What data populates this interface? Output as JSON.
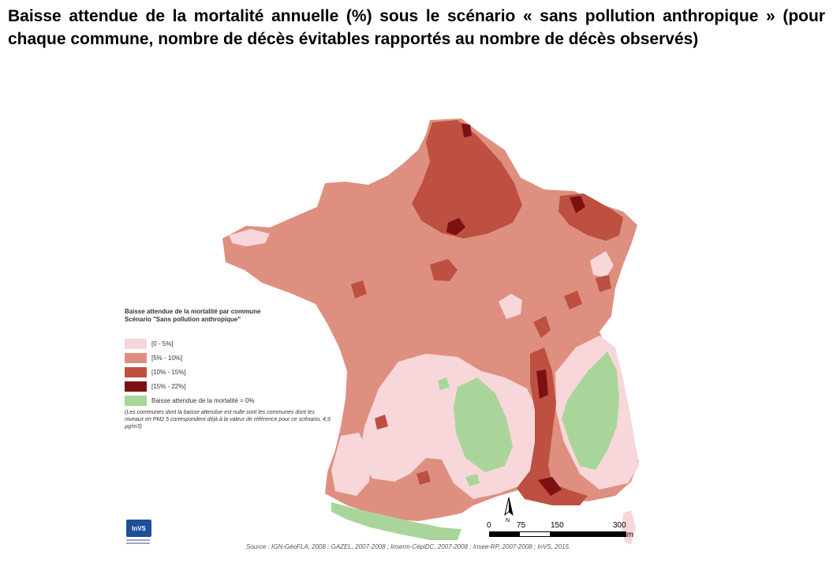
{
  "title": "Baisse attendue de la mortalité annuelle (%) sous le scénario « sans pollution anthropique » (pour chaque commune, nombre de décès évitables rapportés au nombre de décès observés)",
  "legend": {
    "title_line1": "Baisse attendue de la mortalité par commune",
    "title_line2": "Scénario \"Sans pollution anthropique\"",
    "items": [
      {
        "label": "[0 - 5%]",
        "color": "#f7d7d9"
      },
      {
        "label": "[5% - 10%]",
        "color": "#df8f80"
      },
      {
        "label": "[10% - 15%]",
        "color": "#bd5040"
      },
      {
        "label": "[15% - 22%]",
        "color": "#7d1111"
      },
      {
        "label": "Baisse attendue de la mortalité = 0%",
        "color": "#a9d59b"
      }
    ],
    "note": "(Les communes dont la baisse attendue est nulle sont les communes dont les niveaux en PM2.5 correspondent déjà à la valeur de référence pour ce scénario, 4,9 µg/m3)"
  },
  "scale": {
    "labels": [
      "0",
      "75",
      "150",
      "300"
    ],
    "unit": "Km",
    "north": "N"
  },
  "logo": {
    "text": "InVS"
  },
  "source": "Source : IGN-GéoFLA, 2008 ; GAZEL, 2007-2008 ; Inserm-CépiDC, 2007-2008 ; Insee-RP, 2007-2008 ; InVS, 2015.",
  "colors": {
    "class_0_5": "#f7d7d9",
    "class_5_10": "#df8f80",
    "class_10_15": "#bd5040",
    "class_15_22": "#7d1111",
    "zero": "#a9d59b"
  }
}
